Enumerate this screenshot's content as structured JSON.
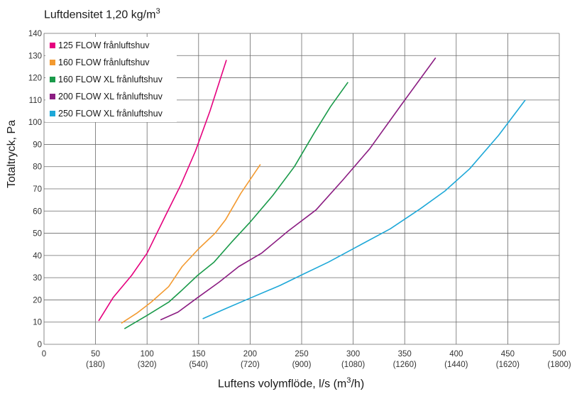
{
  "chart_data": {
    "type": "line",
    "title_main": "Luftdensitet 1,20 kg/m",
    "title_sup": "3",
    "ylabel": "Totaltryck, Pa",
    "xlabel_main": "Luftens volymflöde, l/s (m",
    "xlabel_sup": "3",
    "xlabel_end": "/h)",
    "xlim": [
      0,
      500
    ],
    "ylim": [
      0,
      140
    ],
    "x_ticks": [
      0,
      50,
      100,
      150,
      200,
      250,
      300,
      350,
      400,
      450,
      500
    ],
    "x_tick_labels": [
      "0",
      "50",
      "100",
      "150",
      "200",
      "250",
      "300",
      "350",
      "400",
      "450",
      "500"
    ],
    "x_tick_sublabels": [
      "",
      "(180)",
      "(320)",
      "(540)",
      "(720)",
      "(900)",
      "(1080)",
      "(1260)",
      "(1440)",
      "(1620)",
      "(1800)"
    ],
    "y_ticks": [
      0,
      10,
      20,
      30,
      40,
      50,
      60,
      70,
      80,
      90,
      100,
      110,
      120,
      130,
      140
    ],
    "y_tick_labels": [
      "0",
      "10",
      "20",
      "30",
      "40",
      "50",
      "60",
      "70",
      "80",
      "90",
      "100",
      "110",
      "120",
      "130",
      "140"
    ],
    "grid": true,
    "legend_position": "top-left",
    "series": [
      {
        "name": "125 FLOW frånluftshuv",
        "color": "#e5007e",
        "x": [
          53,
          67,
          85,
          100,
          118,
          133,
          147,
          161,
          177
        ],
        "y": [
          10.5,
          21,
          31,
          41,
          58,
          72,
          87,
          105,
          128
        ]
      },
      {
        "name": "160 FLOW frånluftshuv",
        "color": "#f39a30",
        "x": [
          75,
          90,
          104,
          121,
          134,
          150,
          166,
          176,
          191,
          210
        ],
        "y": [
          9.5,
          14,
          19,
          26,
          35,
          43,
          50,
          56,
          68,
          81
        ]
      },
      {
        "name": "160 FLOW XL frånluftshuv",
        "color": "#1a9a4a",
        "x": [
          78,
          100,
          121,
          133,
          149,
          165,
          182,
          200,
          222,
          243,
          262,
          278,
          295
        ],
        "y": [
          7,
          13,
          19,
          24,
          31,
          37,
          46,
          55,
          67,
          80,
          95,
          107,
          118
        ]
      },
      {
        "name": "200 FLOW XL frånluftshuv",
        "color": "#8b1d82",
        "x": [
          113,
          130,
          149,
          170,
          189,
          211,
          237,
          264,
          290,
          316,
          347,
          380
        ],
        "y": [
          11,
          14.5,
          21,
          28,
          35,
          41,
          51,
          60.5,
          74,
          88,
          108,
          129
        ]
      },
      {
        "name": "250 FLOW XL frånluftshuv",
        "color": "#1ea8d8",
        "x": [
          154,
          176,
          201,
          229,
          249,
          276,
          304,
          336,
          365,
          389,
          413,
          441,
          467
        ],
        "y": [
          11.5,
          16,
          21,
          26.5,
          31,
          37,
          44,
          52,
          61,
          69,
          79,
          94,
          110
        ]
      }
    ]
  }
}
